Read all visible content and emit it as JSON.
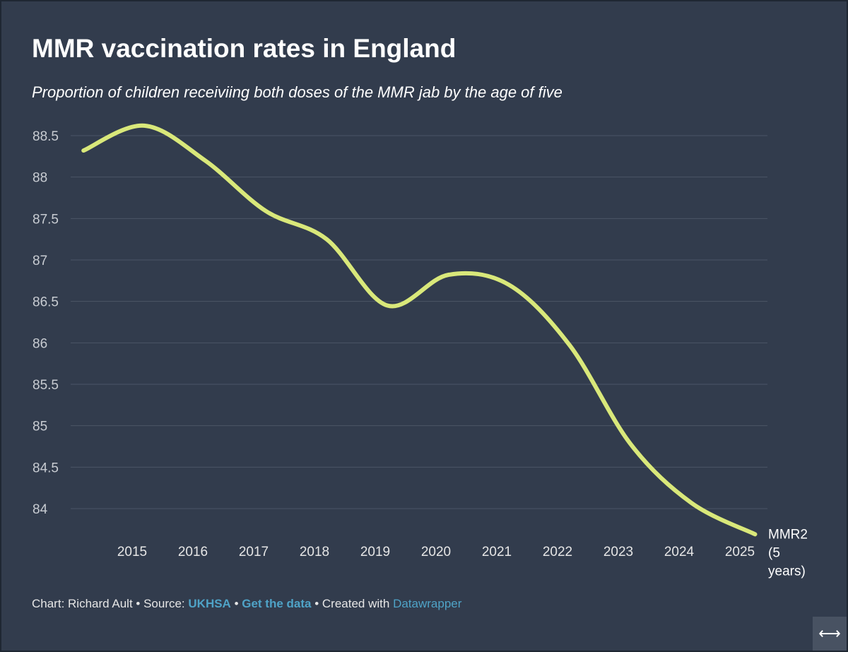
{
  "colors": {
    "background": "#323c4d",
    "line": "#d9e87a",
    "grid": "#4b5566",
    "link": "#4fa3c7"
  },
  "chart_data": {
    "type": "line",
    "title": "MMR vaccination rates in England",
    "subtitle": "Proportion of children receiviing both doses of the MMR jab by the age of five",
    "xlabel": "",
    "ylabel": "",
    "x_ticks": [
      "2015",
      "2016",
      "2017",
      "2018",
      "2019",
      "2020",
      "2021",
      "2022",
      "2023",
      "2024",
      "2025"
    ],
    "y_ticks": [
      "88.5",
      "88",
      "87.5",
      "87",
      "86.5",
      "86",
      "85.5",
      "85",
      "84.5",
      "84"
    ],
    "ylim": [
      83.7,
      88.7
    ],
    "grid": true,
    "series": [
      {
        "name": "MMR2 (5 years)",
        "x": [
          2014.2,
          2015.2,
          2016.2,
          2017.2,
          2018.2,
          2019.2,
          2020.2,
          2021.2,
          2022.2,
          2023.2,
          2024.2,
          2025.25
        ],
        "values": [
          88.32,
          88.62,
          88.2,
          87.59,
          87.25,
          86.45,
          86.82,
          86.7,
          85.97,
          84.78,
          84.07,
          83.69
        ]
      }
    ],
    "series_label_lines": [
      "MMR2",
      "(5",
      "years)"
    ]
  },
  "footer": {
    "prefix": "Chart: Richard Ault • Source: ",
    "source": "UKHSA",
    "sep1": " • ",
    "get_data": "Get the data",
    "sep2": " • Created with ",
    "tool": "Datawrapper"
  },
  "expand_icon": "arrows-horizontal-icon",
  "expand_glyph": "⟷"
}
